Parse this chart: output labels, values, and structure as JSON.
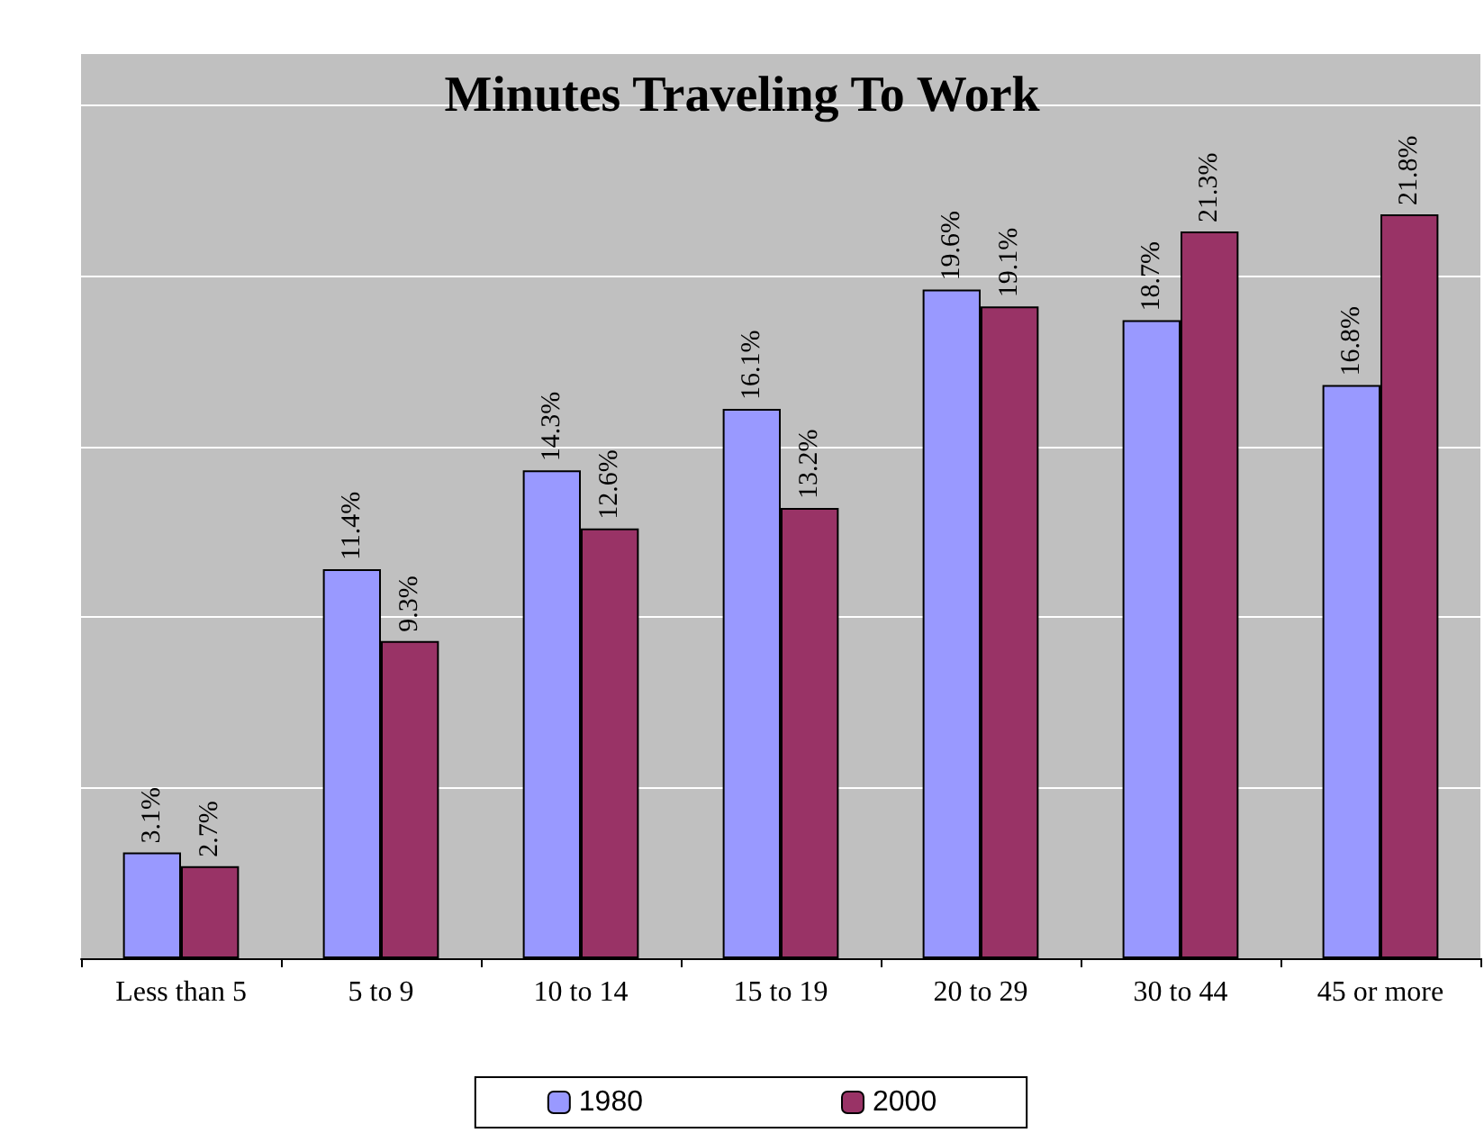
{
  "chart_data": {
    "type": "bar",
    "title": "Minutes Traveling To Work",
    "categories": [
      "Less than 5",
      "5 to 9",
      "10 to 14",
      "15 to 19",
      "20 to 29",
      "30 to 44",
      "45 or more"
    ],
    "series": [
      {
        "name": "1980",
        "color": "#9999ff",
        "values": [
          3.1,
          11.4,
          14.3,
          16.1,
          19.6,
          18.7,
          16.8
        ],
        "value_labels": [
          "3.1%",
          "11.4%",
          "14.3%",
          "16.1%",
          "19.6%",
          "18.7%",
          "16.8%"
        ]
      },
      {
        "name": "2000",
        "color": "#993366",
        "values": [
          2.7,
          9.3,
          12.6,
          13.2,
          19.1,
          21.3,
          21.8
        ],
        "value_labels": [
          "2.7%",
          "9.3%",
          "12.6%",
          "13.2%",
          "19.1%",
          "21.3%",
          "21.8%"
        ]
      }
    ],
    "ylim": [
      0,
      26.5
    ],
    "yticks": [
      {
        "value": 0,
        "label": null
      },
      {
        "value": 5,
        "label": null
      },
      {
        "value": 10,
        "label": null
      },
      {
        "value": 15,
        "label": null
      },
      {
        "value": 20,
        "label": null
      },
      {
        "value": 25,
        "label": null
      }
    ],
    "grid": "y",
    "legend": "bottom"
  }
}
